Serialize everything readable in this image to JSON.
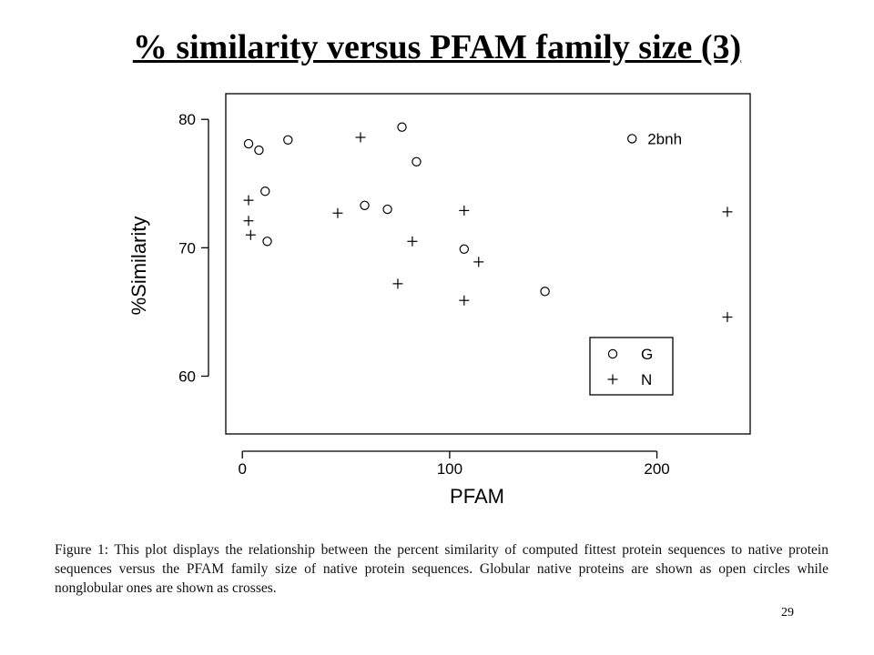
{
  "slide": {
    "title": "% similarity versus PFAM family size (3)",
    "caption": "Figure 1:  This plot displays the relationship between the percent similarity of computed fittest protein sequences to native protein sequences versus the PFAM family size of native protein sequences. Globular native proteins are shown as open circles while nonglobular ones are shown as crosses.",
    "page_number": "29"
  },
  "chart_data": {
    "type": "scatter",
    "xlabel": "PFAM",
    "ylabel": "%Similarity",
    "xlim": [
      -8,
      245
    ],
    "ylim": [
      55.5,
      82
    ],
    "xticks": [
      0,
      100,
      200
    ],
    "yticks": [
      60,
      70,
      80
    ],
    "grid": false,
    "legend_position": "bottom-right",
    "series": [
      {
        "name": "G",
        "marker": "circle",
        "points": [
          [
            3,
            78.1
          ],
          [
            8,
            77.6
          ],
          [
            11,
            74.4
          ],
          [
            12,
            70.5
          ],
          [
            22,
            78.4
          ],
          [
            59,
            73.3
          ],
          [
            70,
            73.0
          ],
          [
            77,
            79.4
          ],
          [
            84,
            76.7
          ],
          [
            107,
            69.9
          ],
          [
            146,
            66.6
          ],
          [
            188,
            78.5
          ]
        ]
      },
      {
        "name": "N",
        "marker": "cross",
        "points": [
          [
            3,
            73.7
          ],
          [
            3,
            72.1
          ],
          [
            4,
            71.0
          ],
          [
            46,
            72.7
          ],
          [
            57,
            78.6
          ],
          [
            75,
            67.2
          ],
          [
            82,
            70.5
          ],
          [
            107,
            72.9
          ],
          [
            107,
            65.9
          ],
          [
            114,
            68.9
          ],
          [
            234,
            72.8
          ],
          [
            234,
            64.6
          ]
        ]
      }
    ],
    "annotations": [
      {
        "text": "2bnh",
        "x": 188,
        "y": 78.5
      }
    ]
  }
}
